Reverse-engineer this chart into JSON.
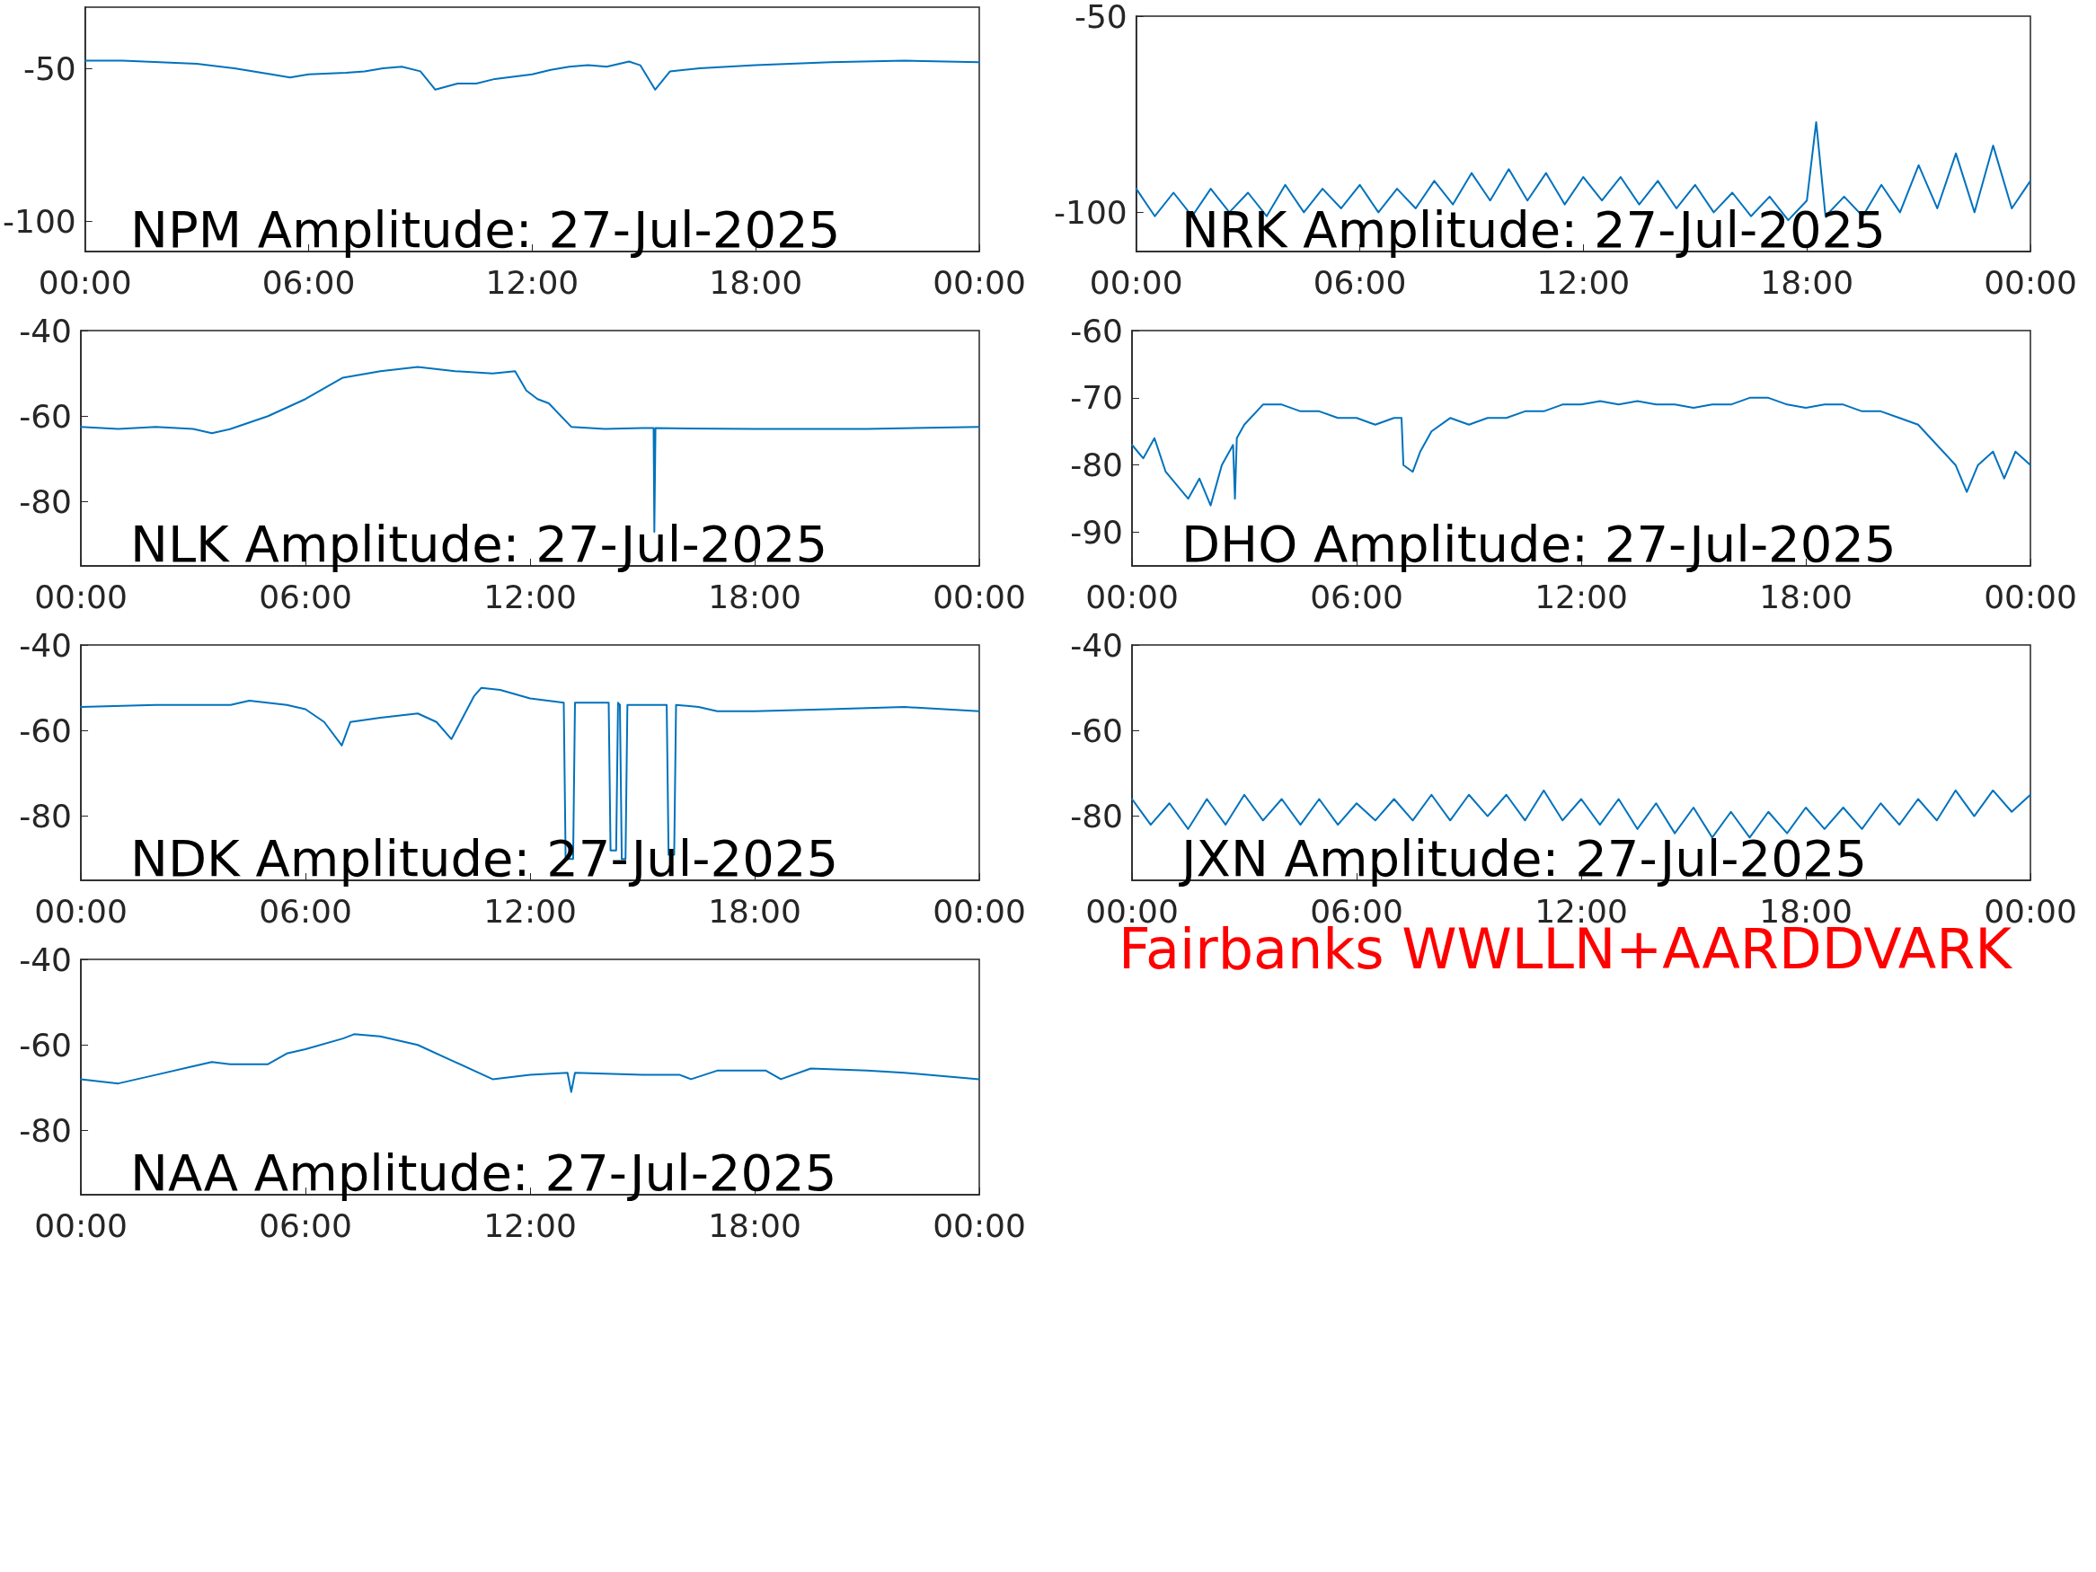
{
  "chart_data": [
    {
      "type": "line",
      "title": "NPM Amplitude: 27-Jul-2025",
      "color": "#0072bd",
      "marker": "none",
      "xlim": [
        0,
        24
      ],
      "xticks": [
        {
          "value": 0,
          "label": "00:00"
        },
        {
          "value": 6,
          "label": "06:00"
        },
        {
          "value": 12,
          "label": "12:00"
        },
        {
          "value": 18,
          "label": "18:00"
        },
        {
          "value": 24,
          "label": "00:00"
        }
      ],
      "ylim": [
        -110,
        -30
      ],
      "yticks": [
        -100,
        -50
      ],
      "x": [
        0,
        1,
        2,
        3,
        4,
        5,
        5.5,
        6,
        7,
        7.5,
        8,
        8.5,
        9,
        9.4,
        10,
        10.5,
        11,
        12,
        12.5,
        13,
        13.5,
        14,
        14.6,
        14.9,
        15.3,
        15.7,
        16.5,
        18,
        20,
        22,
        24
      ],
      "values": [
        -47.5,
        -47.5,
        -48,
        -48.5,
        -50,
        -52,
        -53,
        -52,
        -51.5,
        -51,
        -50,
        -49.5,
        -51,
        -57,
        -55,
        -55,
        -53.5,
        -52,
        -50.5,
        -49.5,
        -49,
        -49.5,
        -47.8,
        -49,
        -57,
        -51,
        -50,
        -49,
        -48,
        -47.5,
        -48
      ]
    },
    {
      "type": "line",
      "title": "NRK Amplitude: 27-Jul-2025",
      "color": "#0072bd",
      "marker": "none",
      "xlim": [
        0,
        24
      ],
      "xticks": [
        {
          "value": 0,
          "label": "00:00"
        },
        {
          "value": 6,
          "label": "06:00"
        },
        {
          "value": 12,
          "label": "12:00"
        },
        {
          "value": 18,
          "label": "18:00"
        },
        {
          "value": 24,
          "label": "00:00"
        }
      ],
      "ylim": [
        -110,
        -50
      ],
      "yticks": [
        -100,
        -50
      ],
      "x": [
        0,
        0.5,
        1,
        1.5,
        2,
        2.5,
        3,
        3.5,
        4,
        4.5,
        5,
        5.5,
        6,
        6.5,
        7,
        7.5,
        8,
        8.5,
        9,
        9.5,
        10,
        10.5,
        11,
        11.5,
        12,
        12.5,
        13,
        13.5,
        14,
        14.5,
        15,
        15.5,
        16,
        16.5,
        17,
        17.5,
        18,
        18.25,
        18.5,
        19,
        19.5,
        20,
        20.5,
        21,
        21.5,
        22,
        22.5,
        23,
        23.5,
        24
      ],
      "values": [
        -94,
        -101,
        -95,
        -101,
        -94,
        -100,
        -95,
        -101,
        -93,
        -100,
        -94,
        -99,
        -93,
        -100,
        -94,
        -99,
        -92,
        -98,
        -90,
        -97,
        -89,
        -97,
        -90,
        -98,
        -91,
        -97,
        -91,
        -98,
        -92,
        -99,
        -93,
        -100,
        -95,
        -101,
        -96,
        -102,
        -97,
        -77,
        -101,
        -96,
        -101,
        -93,
        -100,
        -88,
        -99,
        -85,
        -100,
        -83,
        -99,
        -92
      ]
    },
    {
      "type": "line",
      "title": "NLK Amplitude: 27-Jul-2025",
      "color": "#0072bd",
      "marker": "none",
      "xlim": [
        0,
        24
      ],
      "xticks": [
        {
          "value": 0,
          "label": "00:00"
        },
        {
          "value": 6,
          "label": "06:00"
        },
        {
          "value": 12,
          "label": "12:00"
        },
        {
          "value": 18,
          "label": "18:00"
        },
        {
          "value": 24,
          "label": "00:00"
        }
      ],
      "ylim": [
        -95,
        -40
      ],
      "yticks": [
        -80,
        -60,
        -40
      ],
      "x": [
        0,
        1,
        2,
        3,
        3.5,
        4,
        5,
        6,
        7,
        8,
        9,
        10,
        11,
        11.6,
        11.9,
        12.2,
        12.5,
        13.1,
        14,
        15,
        15.3,
        15.32,
        15.35,
        18,
        21,
        24
      ],
      "values": [
        -62.5,
        -63,
        -62.5,
        -63,
        -64,
        -63,
        -60,
        -56,
        -51,
        -49.5,
        -48.5,
        -49.5,
        -50,
        -49.5,
        -54,
        -56,
        -57,
        -62.5,
        -63,
        -62.8,
        -62.8,
        -87,
        -62.8,
        -63,
        -63,
        -62.5
      ]
    },
    {
      "type": "line",
      "title": "DHO Amplitude: 27-Jul-2025",
      "color": "#0072bd",
      "marker": "none",
      "xlim": [
        0,
        24
      ],
      "xticks": [
        {
          "value": 0,
          "label": "00:00"
        },
        {
          "value": 6,
          "label": "06:00"
        },
        {
          "value": 12,
          "label": "12:00"
        },
        {
          "value": 18,
          "label": "18:00"
        },
        {
          "value": 24,
          "label": "00:00"
        }
      ],
      "ylim": [
        -95,
        -60
      ],
      "yticks": [
        -90,
        -80,
        -70,
        -60
      ],
      "x": [
        0,
        0.3,
        0.6,
        0.9,
        1.2,
        1.5,
        1.8,
        2.1,
        2.4,
        2.7,
        2.75,
        2.8,
        3.0,
        3.5,
        4,
        4.5,
        5,
        5.5,
        6,
        6.5,
        7,
        7.2,
        7.25,
        7.5,
        7.7,
        8,
        8.5,
        9,
        9.5,
        10,
        10.5,
        11,
        11.5,
        12,
        12.5,
        13,
        13.5,
        14,
        14.5,
        15,
        15.5,
        16,
        16.5,
        17,
        17.5,
        18,
        18.5,
        19,
        19.5,
        20,
        20.5,
        21,
        21.5,
        22,
        22.3,
        22.6,
        23,
        23.3,
        23.6,
        24
      ],
      "values": [
        -77,
        -79,
        -76,
        -81,
        -83,
        -85,
        -82,
        -86,
        -80,
        -77,
        -85,
        -76,
        -74,
        -71,
        -71,
        -72,
        -72,
        -73,
        -73,
        -74,
        -73,
        -73,
        -80,
        -81,
        -78,
        -75,
        -73,
        -74,
        -73,
        -73,
        -72,
        -72,
        -71,
        -71,
        -70.5,
        -71,
        -70.5,
        -71,
        -71,
        -71.5,
        -71,
        -71,
        -70,
        -70,
        -71,
        -71.5,
        -71,
        -71,
        -72,
        -72,
        -73,
        -74,
        -77,
        -80,
        -84,
        -80,
        -78,
        -82,
        -78,
        -80
      ]
    },
    {
      "type": "line",
      "title": "NDK Amplitude: 27-Jul-2025",
      "color": "#0072bd",
      "marker": "none",
      "xlim": [
        0,
        24
      ],
      "xticks": [
        {
          "value": 0,
          "label": "00:00"
        },
        {
          "value": 6,
          "label": "06:00"
        },
        {
          "value": 12,
          "label": "12:00"
        },
        {
          "value": 18,
          "label": "18:00"
        },
        {
          "value": 24,
          "label": "00:00"
        }
      ],
      "ylim": [
        -95,
        -40
      ],
      "yticks": [
        -80,
        -60,
        -40
      ],
      "x": [
        0,
        2,
        4,
        4.5,
        5.5,
        6,
        6.5,
        6.97,
        7.2,
        8,
        9,
        9.5,
        9.9,
        10.2,
        10.5,
        10.7,
        11.2,
        12,
        12.9,
        12.95,
        13.15,
        13.2,
        14.1,
        14.15,
        14.3,
        14.35,
        14.4,
        14.45,
        14.55,
        14.6,
        15.65,
        15.7,
        15.85,
        15.9,
        16.5,
        17,
        18,
        20,
        22,
        24
      ],
      "values": [
        -54.5,
        -54,
        -54,
        -53,
        -54,
        -55,
        -58,
        -63.5,
        -58,
        -57,
        -56,
        -58,
        -62,
        -57,
        -52,
        -50,
        -50.5,
        -52.5,
        -53.5,
        -90,
        -90,
        -53.5,
        -53.5,
        -88,
        -88,
        -53.5,
        -54,
        -90,
        -90,
        -54,
        -54,
        -89,
        -89,
        -54,
        -54.5,
        -55.5,
        -55.5,
        -55,
        -54.5,
        -55.5
      ]
    },
    {
      "type": "line",
      "title": "JXN Amplitude: 27-Jul-2025",
      "color": "#0072bd",
      "marker": "none",
      "xlim": [
        0,
        24
      ],
      "xticks": [
        {
          "value": 0,
          "label": "00:00"
        },
        {
          "value": 6,
          "label": "06:00"
        },
        {
          "value": 12,
          "label": "12:00"
        },
        {
          "value": 18,
          "label": "18:00"
        },
        {
          "value": 24,
          "label": "00:00"
        }
      ],
      "ylim": [
        -95,
        -40
      ],
      "yticks": [
        -80,
        -60,
        -40
      ],
      "x": [
        0,
        0.5,
        1,
        1.5,
        2,
        2.5,
        3,
        3.5,
        4,
        4.5,
        5,
        5.5,
        6,
        6.5,
        7,
        7.5,
        8,
        8.5,
        9,
        9.5,
        10,
        10.5,
        11,
        11.5,
        12,
        12.5,
        13,
        13.5,
        14,
        14.5,
        15,
        15.5,
        16,
        16.5,
        17,
        17.5,
        18,
        18.5,
        19,
        19.5,
        20,
        20.5,
        21,
        21.5,
        22,
        22.5,
        23,
        23.5,
        24
      ],
      "values": [
        -76,
        -82,
        -77,
        -83,
        -76,
        -82,
        -75,
        -81,
        -76,
        -82,
        -76,
        -82,
        -77,
        -81,
        -76,
        -81,
        -75,
        -81,
        -75,
        -80,
        -75,
        -81,
        -74,
        -81,
        -76,
        -82,
        -76,
        -83,
        -77,
        -84,
        -78,
        -85,
        -79,
        -85,
        -79,
        -84,
        -78,
        -83,
        -78,
        -83,
        -77,
        -82,
        -76,
        -81,
        -74,
        -80,
        -74,
        -79,
        -75
      ]
    },
    {
      "type": "line",
      "title": "NAA Amplitude: 27-Jul-2025",
      "color": "#0072bd",
      "marker": "none",
      "xlim": [
        0,
        24
      ],
      "xticks": [
        {
          "value": 0,
          "label": "00:00"
        },
        {
          "value": 6,
          "label": "06:00"
        },
        {
          "value": 12,
          "label": "12:00"
        },
        {
          "value": 18,
          "label": "18:00"
        },
        {
          "value": 24,
          "label": "00:00"
        }
      ],
      "ylim": [
        -95,
        -40
      ],
      "yticks": [
        -80,
        -60,
        -40
      ],
      "x": [
        0,
        1,
        2,
        3,
        3.5,
        4,
        5,
        5.5,
        6,
        7,
        7.3,
        8,
        8.5,
        9,
        10,
        11,
        12,
        13,
        13.1,
        13.2,
        15,
        16,
        16.3,
        17,
        18.3,
        18.7,
        19.5,
        21,
        22,
        24
      ],
      "values": [
        -68,
        -69,
        -67,
        -65,
        -64,
        -64.5,
        -64.5,
        -62,
        -61,
        -58.5,
        -57.5,
        -58,
        -59,
        -60,
        -64,
        -68,
        -67,
        -66.5,
        -71,
        -66.5,
        -67,
        -67,
        -68,
        -66,
        -66,
        -68,
        -65.5,
        -66,
        -66.5,
        -68
      ]
    },
    {
      "type": "other",
      "color": "#ff0000",
      "annotations": [
        "Fairbanks WWLLN+AARDDVARK"
      ]
    }
  ]
}
